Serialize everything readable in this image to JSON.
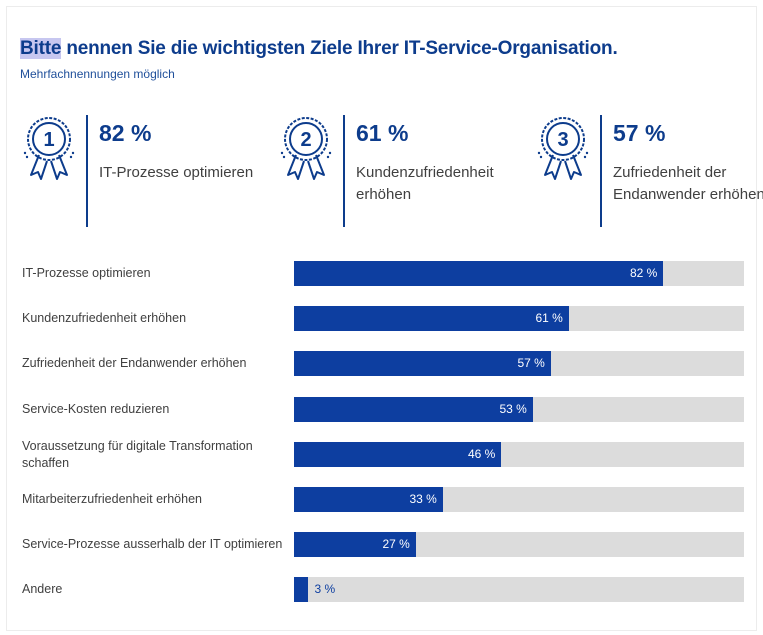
{
  "title_highlight": "Bitte",
  "title_rest": " nennen Sie die wichtigsten Ziele Ihrer IT-Service-Organisation.",
  "subtitle": "Mehrfachnennungen möglich",
  "top3": [
    {
      "rank": "1",
      "pct": "82 %",
      "label": "IT-Prozesse optimieren"
    },
    {
      "rank": "2",
      "pct": "61 %",
      "label": "Kundenzufriedenheit erhöhen"
    },
    {
      "rank": "3",
      "pct": "57 %",
      "label": "Zufriedenheit der Endanwender erhöhen"
    }
  ],
  "colors": {
    "accent": "#0d3ea0",
    "track": "#dcdcdc",
    "text": "#404040",
    "title": "#0d3c8c"
  },
  "chart_data": {
    "type": "bar",
    "orientation": "horizontal",
    "categories": [
      "IT-Prozesse optimieren",
      "Kundenzufriedenheit erhöhen",
      "Zufriedenheit der Endanwender erhöhen",
      "Service-Kosten reduzieren",
      "Voraussetzung für digitale Transformation schaffen",
      "Mitarbeiterzufriedenheit erhöhen",
      "Service-Prozesse ausserhalb der IT optimieren",
      "Andere"
    ],
    "values": [
      82,
      61,
      57,
      53,
      46,
      33,
      27,
      3
    ],
    "value_labels": [
      "82 %",
      "61 %",
      "57 %",
      "53 %",
      "46 %",
      "33 %",
      "27 %",
      "3 %"
    ],
    "xlim": [
      0,
      100
    ],
    "unit": "%",
    "grid": false
  }
}
